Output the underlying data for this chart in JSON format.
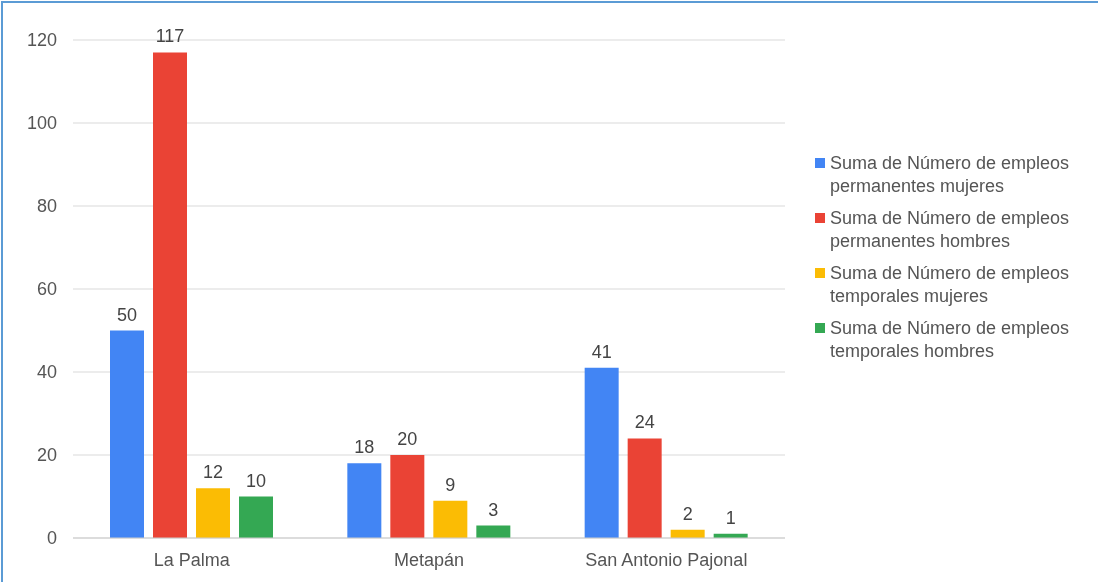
{
  "chart_data": {
    "type": "bar",
    "categories": [
      "La Palma",
      "Metapán",
      "San Antonio Pajonal"
    ],
    "series": [
      {
        "name": "Suma de Número de empleos permanentes mujeres",
        "color": "#4285f4",
        "values": [
          50,
          18,
          41
        ]
      },
      {
        "name": "Suma de Número de empleos permanentes hombres",
        "color": "#ea4335",
        "values": [
          117,
          20,
          24
        ]
      },
      {
        "name": "Suma de Número de empleos temporales mujeres",
        "color": "#fbbc04",
        "values": [
          12,
          9,
          2
        ]
      },
      {
        "name": "Suma de Número de empleos temporales hombres",
        "color": "#34a853",
        "values": [
          10,
          3,
          1
        ]
      }
    ],
    "ylim": [
      0,
      120
    ],
    "yticks": [
      0,
      20,
      40,
      60,
      80,
      100,
      120
    ],
    "grid": "y",
    "legend": "right",
    "data_labels": true
  }
}
